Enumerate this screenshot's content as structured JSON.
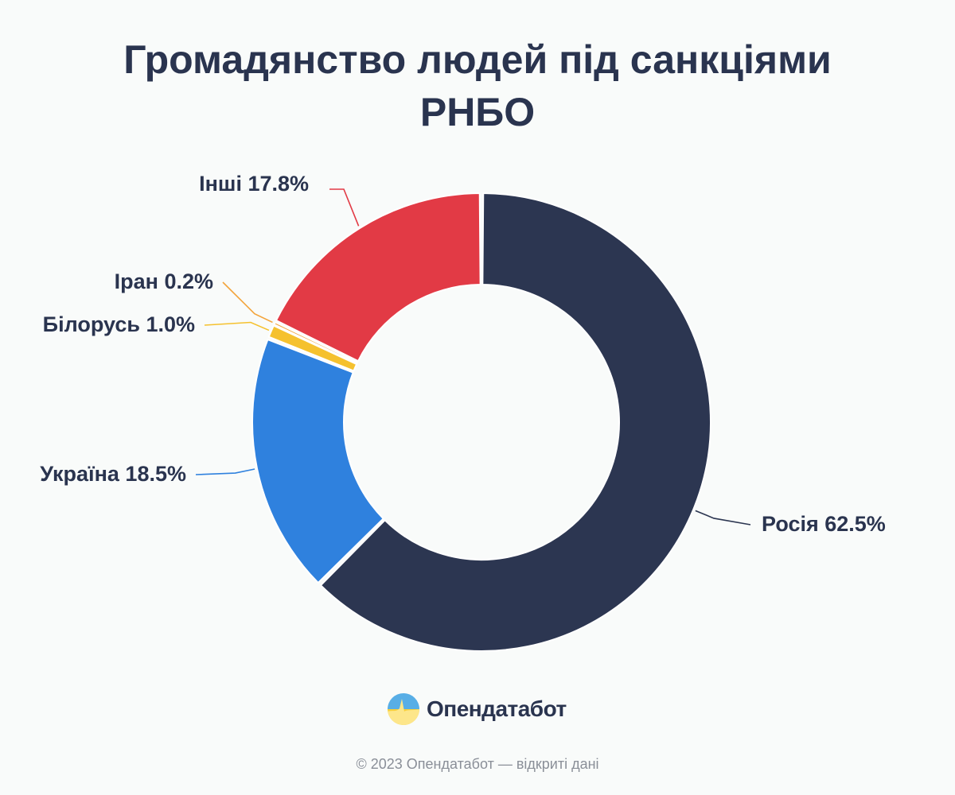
{
  "chart_data": {
    "type": "pie",
    "title": "Громадянство людей під санкціями РНБО",
    "labels": [
      "Росія",
      "Україна",
      "Білорусь",
      "Іран",
      "Інші"
    ],
    "values": [
      62.5,
      18.5,
      1.0,
      0.2,
      17.8
    ],
    "value_labels": [
      "62.5%",
      "18.5%",
      "1.0%",
      "0.2%",
      "17.8%"
    ],
    "colors": [
      "#2c3651",
      "#2f81de",
      "#f5c12e",
      "#f3a43b",
      "#e23a45"
    ],
    "start_angle_deg": 0,
    "direction": "clockwise"
  },
  "brand": {
    "name": "Опендатабот",
    "logo_icon": "sunrise-logo-icon"
  },
  "footer": {
    "text": "© 2023 Опендатабот — відкриті дані"
  }
}
